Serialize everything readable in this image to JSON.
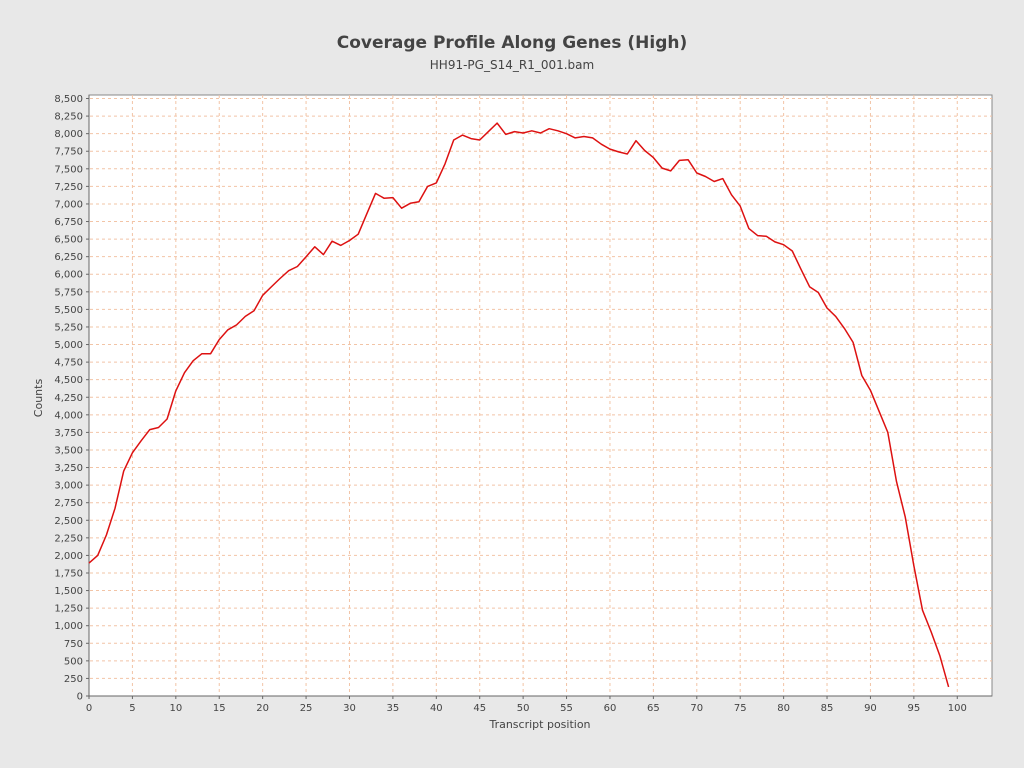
{
  "chart_data": {
    "type": "line",
    "title": "Coverage Profile Along Genes (High)",
    "subtitle": "HH91-PG_S14_R1_001.bam",
    "xlabel": "Transcript position",
    "ylabel": "Counts",
    "xlim": [
      0,
      104
    ],
    "ylim": [
      0,
      8550
    ],
    "xticks": [
      0,
      5,
      10,
      15,
      20,
      25,
      30,
      35,
      40,
      45,
      50,
      55,
      60,
      65,
      70,
      75,
      80,
      85,
      90,
      95,
      100
    ],
    "yticks": [
      0,
      250,
      500,
      750,
      1000,
      1250,
      1500,
      1750,
      2000,
      2250,
      2500,
      2750,
      3000,
      3250,
      3500,
      3750,
      4000,
      4250,
      4500,
      4750,
      5000,
      5250,
      5500,
      5750,
      6000,
      6250,
      6500,
      6750,
      7000,
      7250,
      7500,
      7750,
      8000,
      8250,
      8500
    ],
    "grid": true,
    "legend": "none",
    "colors": {
      "line": "#dd1111",
      "grid": "#f2c4a6",
      "plot_background": "#ffffff",
      "page_background": "#e8e8e8",
      "axis": "#888888"
    },
    "series": [
      {
        "x": [
          0,
          1,
          2,
          3,
          4,
          5,
          6,
          7,
          8,
          9,
          10,
          11,
          12,
          13,
          14,
          15,
          16,
          17,
          18,
          19,
          20,
          21,
          22,
          23,
          24,
          25,
          26,
          27,
          28,
          29,
          30,
          31,
          32,
          33,
          34,
          35,
          36,
          37,
          38,
          39,
          40,
          41,
          42,
          43,
          44,
          45,
          46,
          47,
          48,
          49,
          50,
          51,
          52,
          53,
          54,
          55,
          56,
          57,
          58,
          59,
          60,
          61,
          62,
          63,
          64,
          65,
          66,
          67,
          68,
          69,
          70,
          71,
          72,
          73,
          74,
          75,
          76,
          77,
          78,
          79,
          80,
          81,
          82,
          83,
          84,
          85,
          86,
          87,
          88,
          89,
          90,
          91,
          92,
          93,
          94,
          95,
          96,
          97,
          98,
          99
        ],
        "values": [
          1890,
          2000,
          2290,
          2670,
          3200,
          3460,
          3630,
          3790,
          3820,
          3940,
          4340,
          4600,
          4770,
          4870,
          4870,
          5070,
          5210,
          5280,
          5400,
          5480,
          5700,
          5820,
          5940,
          6050,
          6110,
          6250,
          6390,
          6280,
          6470,
          6410,
          6480,
          6570,
          6860,
          7150,
          7080,
          7090,
          6940,
          7010,
          7030,
          7250,
          7300,
          7570,
          7910,
          7980,
          7930,
          7910,
          8030,
          8150,
          7990,
          8030,
          8010,
          8040,
          8010,
          8070,
          8040,
          8000,
          7940,
          7960,
          7940,
          7850,
          7780,
          7740,
          7710,
          7900,
          7760,
          7660,
          7510,
          7470,
          7620,
          7630,
          7440,
          7390,
          7320,
          7360,
          7130,
          6970,
          6650,
          6550,
          6540,
          6460,
          6420,
          6330,
          6070,
          5820,
          5740,
          5520,
          5400,
          5230,
          5030,
          4560,
          4350,
          4050,
          3750,
          3050,
          2550,
          1850,
          1220,
          910,
          570,
          130
        ]
      }
    ]
  }
}
